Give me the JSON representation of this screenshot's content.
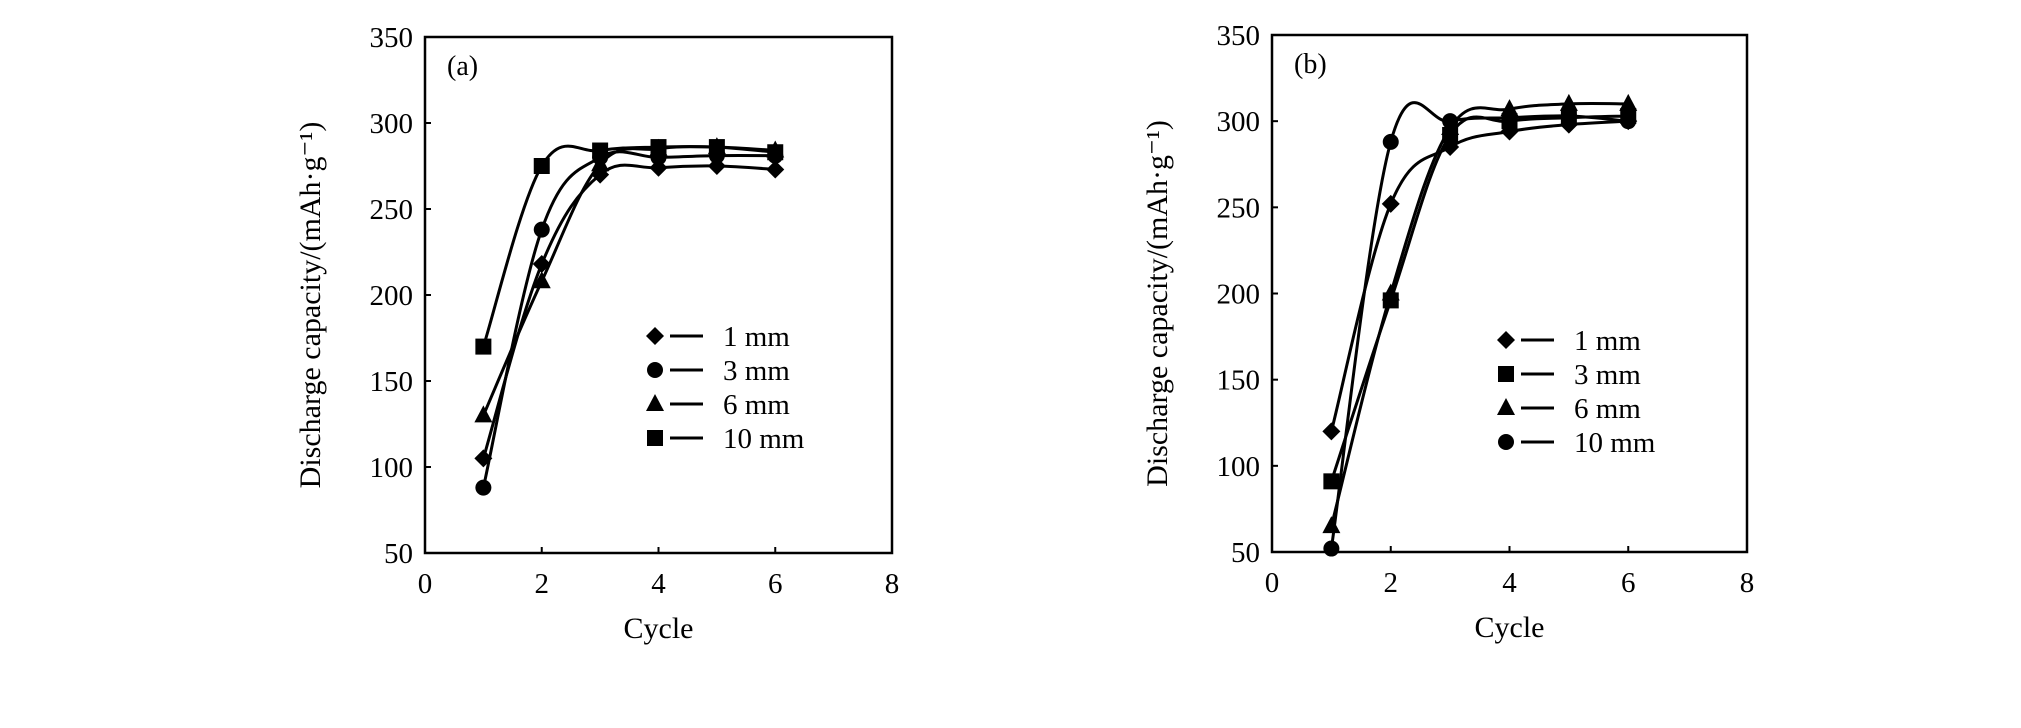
{
  "chart_data": [
    {
      "type": "line",
      "panel_label": "(a)",
      "xlabel": "Cycle",
      "ylabel": "Discharge capacity/(mAh·g⁻¹)",
      "xlim": [
        0,
        8
      ],
      "ylim": [
        50,
        350
      ],
      "xticks": [
        "0",
        "2",
        "4",
        "6",
        "8"
      ],
      "yticks": [
        "50",
        "100",
        "150",
        "200",
        "250",
        "300",
        "350"
      ],
      "grid": false,
      "legend_position": "center-right",
      "x": [
        1,
        2,
        3,
        4,
        5,
        6
      ],
      "series": [
        {
          "name": "1 mm",
          "marker": "diamond",
          "values": [
            105,
            218,
            270,
            274,
            275,
            273
          ]
        },
        {
          "name": "3 mm",
          "marker": "circle",
          "values": [
            88,
            238,
            280,
            280,
            281,
            281
          ]
        },
        {
          "name": "6 mm",
          "marker": "triangle",
          "values": [
            130,
            208,
            276,
            285,
            286,
            284
          ]
        },
        {
          "name": "10 mm",
          "marker": "square",
          "values": [
            170,
            275,
            284,
            286,
            286,
            283
          ]
        }
      ]
    },
    {
      "type": "line",
      "panel_label": "(b)",
      "xlabel": "Cycle",
      "ylabel": "Discharge capacity/(mAh·g⁻¹)",
      "xlim": [
        0,
        8
      ],
      "ylim": [
        50,
        350
      ],
      "xticks": [
        "0",
        "2",
        "4",
        "6",
        "8"
      ],
      "yticks": [
        "50",
        "100",
        "150",
        "200",
        "250",
        "300",
        "350"
      ],
      "grid": false,
      "legend_position": "center-right",
      "x": [
        1,
        2,
        3,
        4,
        5,
        6
      ],
      "series": [
        {
          "name": "1 mm",
          "marker": "diamond",
          "values": [
            120,
            252,
            285,
            294,
            298,
            300
          ]
        },
        {
          "name": "3 mm",
          "marker": "square",
          "values": [
            91,
            196,
            292,
            300,
            302,
            303
          ]
        },
        {
          "name": "6 mm",
          "marker": "triangle",
          "values": [
            65,
            200,
            296,
            307,
            310,
            310
          ]
        },
        {
          "name": "10 mm",
          "marker": "circle",
          "values": [
            52,
            288,
            300,
            302,
            303,
            300
          ]
        }
      ]
    }
  ]
}
